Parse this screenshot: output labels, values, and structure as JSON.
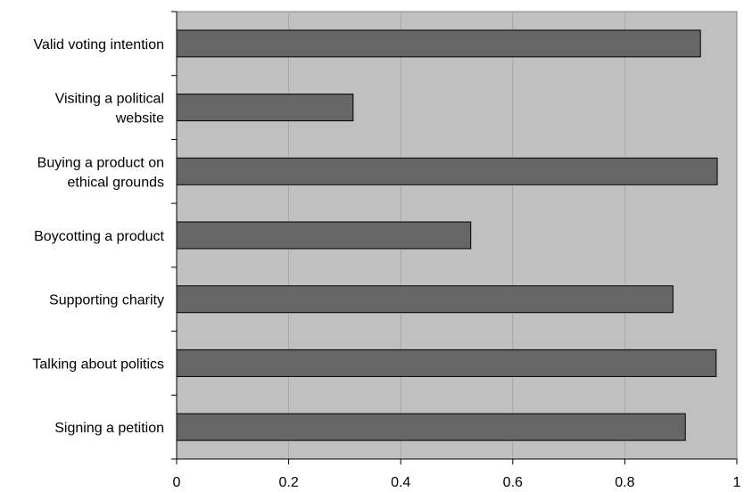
{
  "chart_data": {
    "type": "bar",
    "orientation": "horizontal",
    "categories": [
      [
        "Valid voting intention"
      ],
      [
        "Visiting a political",
        "website"
      ],
      [
        "Buying a product on",
        "ethical grounds"
      ],
      [
        "Boycotting a product"
      ],
      [
        "Supporting charity"
      ],
      [
        "Talking about politics"
      ],
      [
        "Signing a petition"
      ]
    ],
    "values": [
      0.935,
      0.315,
      0.965,
      0.525,
      0.886,
      0.963,
      0.908
    ],
    "xlim": [
      0,
      1
    ],
    "xticks": [
      "0",
      "0.2",
      "0.4",
      "0.6",
      "0.8",
      "1"
    ],
    "title": "",
    "xlabel": "",
    "ylabel": "",
    "grid": "vertical",
    "legend": "none",
    "colors": {
      "plot_bg": "#c0c0c0",
      "bar": "#666666",
      "bar_edge": "#000000",
      "grid": "#a8a8a8"
    }
  }
}
